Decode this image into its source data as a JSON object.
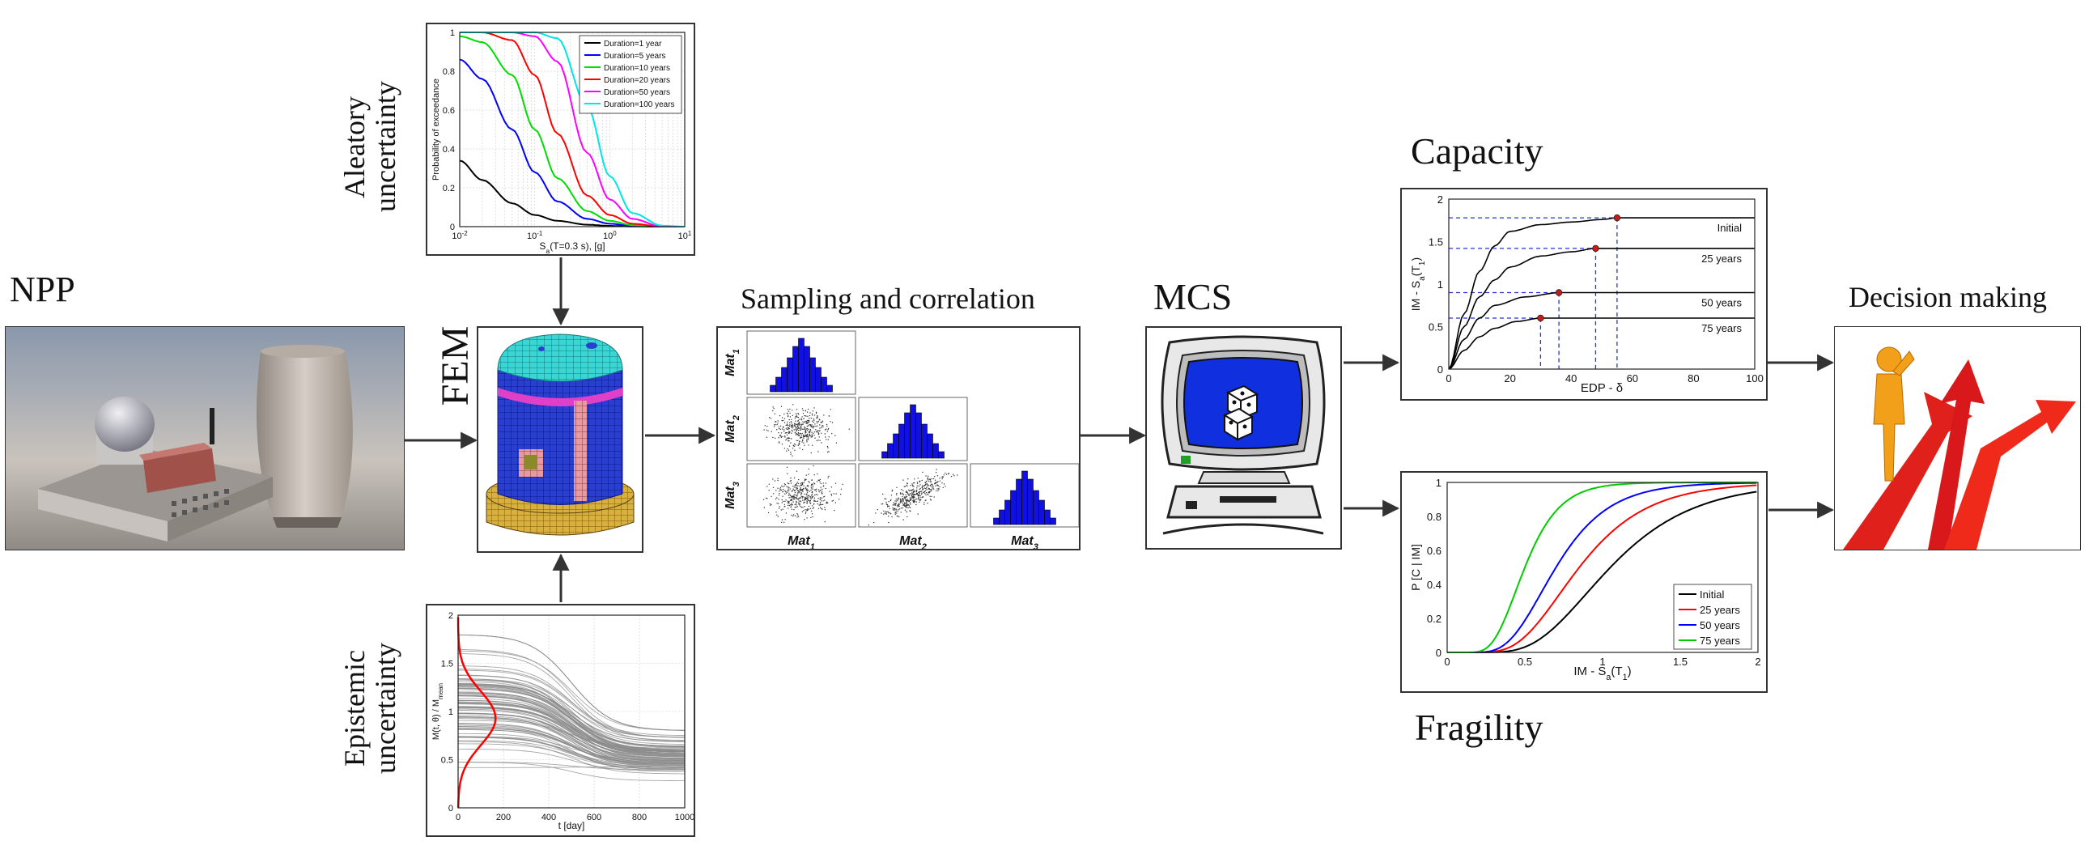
{
  "labels": {
    "npp": "NPP",
    "fem": "FEM",
    "aleatory_line1": "Aleatory",
    "aleatory_line2": "uncertainty",
    "epistemic_line1": "Epistemic",
    "epistemic_line2": "uncertainty",
    "sampling": "Sampling and correlation",
    "mcs": "MCS",
    "capacity": "Capacity",
    "fragility": "Fragility",
    "decision": "Decision making"
  },
  "sampling_matrix": {
    "mats": [
      "Mat",
      "Mat",
      "Mat"
    ],
    "subs": [
      "1",
      "2",
      "3"
    ]
  },
  "colors": {
    "histogram": "#1010e0",
    "scatter": "#333333",
    "cylinder_top": "#3ad6d6",
    "cylinder_body": "#2a3fd0",
    "cylinder_band": "#e040c8",
    "base": "#d8b040",
    "cooling_tower": "#c9bfb6",
    "figure_orange": "#f2a01a",
    "arrow_red": "#e0201a",
    "screen_blue": "#1030e0"
  },
  "chart_data": [
    {
      "type": "line",
      "title": "",
      "xlabel": "S_a(T=0.3 s), [g]",
      "ylabel": "Probability of exceedance",
      "xscale": "log",
      "xlim": [
        0.01,
        10
      ],
      "ylim": [
        0,
        1
      ],
      "xticks": [
        "10^-2",
        "10^-1",
        "10^0",
        "10^1"
      ],
      "yticks": [
        "0",
        "0.2",
        "0.4",
        "0.6",
        "0.8",
        "1"
      ],
      "legend_position": "top-right",
      "legend_labels": [
        "Duration=1 year",
        "Duration=5 years",
        "Duration=10 years",
        "Duration=20 years",
        "Duration=50 years",
        "Duration=100 years"
      ],
      "series": [
        {
          "name": "Duration=1 year",
          "color": "#000000",
          "x": [
            0.01,
            0.02,
            0.05,
            0.1,
            0.2,
            0.5,
            1,
            2,
            5,
            10
          ],
          "y": [
            0.34,
            0.24,
            0.12,
            0.06,
            0.03,
            0.01,
            0.004,
            0.001,
            0.0,
            0.0
          ]
        },
        {
          "name": "Duration=5 years",
          "color": "#0000ff",
          "x": [
            0.01,
            0.02,
            0.05,
            0.1,
            0.2,
            0.5,
            1,
            2,
            5,
            10
          ],
          "y": [
            0.86,
            0.76,
            0.5,
            0.28,
            0.13,
            0.04,
            0.015,
            0.004,
            0.0,
            0.0
          ]
        },
        {
          "name": "Duration=10 years",
          "color": "#00dd00",
          "x": [
            0.01,
            0.02,
            0.05,
            0.1,
            0.2,
            0.5,
            1,
            2,
            5,
            10
          ],
          "y": [
            0.98,
            0.95,
            0.78,
            0.5,
            0.25,
            0.08,
            0.03,
            0.008,
            0.0,
            0.0
          ]
        },
        {
          "name": "Duration=20 years",
          "color": "#ff0000",
          "x": [
            0.01,
            0.02,
            0.05,
            0.1,
            0.2,
            0.5,
            1,
            2,
            5,
            10
          ],
          "y": [
            1.0,
            1.0,
            0.96,
            0.78,
            0.48,
            0.16,
            0.06,
            0.015,
            0.0,
            0.0
          ]
        },
        {
          "name": "Duration=50 years",
          "color": "#ff00ff",
          "x": [
            0.01,
            0.02,
            0.05,
            0.1,
            0.2,
            0.5,
            1,
            2,
            5,
            10
          ],
          "y": [
            1.0,
            1.0,
            1.0,
            0.98,
            0.85,
            0.38,
            0.14,
            0.04,
            0.0,
            0.0
          ]
        },
        {
          "name": "Duration=100 years",
          "color": "#00e5e5",
          "x": [
            0.01,
            0.02,
            0.05,
            0.1,
            0.2,
            0.5,
            1,
            2,
            5,
            10
          ],
          "y": [
            1.0,
            1.0,
            1.0,
            1.0,
            0.97,
            0.62,
            0.26,
            0.07,
            0.005,
            0.0
          ]
        }
      ]
    },
    {
      "type": "line",
      "title": "",
      "xlabel": "t [day]",
      "ylabel": "M(t, θ) / M_mean",
      "xlim": [
        0,
        1000
      ],
      "ylim": [
        0,
        2
      ],
      "xticks": [
        "0",
        "200",
        "400",
        "600",
        "800",
        "1000"
      ],
      "yticks": [
        "0",
        "0.5",
        "1",
        "1.5",
        "2"
      ],
      "grid": true,
      "sample_paths": {
        "color": "#8a8a8a",
        "count": 90,
        "start_range": [
          0.35,
          1.8
        ],
        "end_range": [
          0.28,
          0.8
        ],
        "transition_day": 500
      },
      "density": {
        "color": "#ff0000",
        "mean": 0.93,
        "std": 0.28,
        "peak_day": 165
      }
    },
    {
      "type": "line",
      "title": "",
      "xlabel": "EDP - δ",
      "ylabel": "IM - S_a(T_1)",
      "xlim": [
        0,
        100
      ],
      "ylim": [
        0,
        2
      ],
      "xticks": [
        "0",
        "20",
        "40",
        "60",
        "80",
        "100"
      ],
      "yticks": [
        "0",
        "0.5",
        "1",
        "1.5",
        "2"
      ],
      "series": [
        {
          "name": "Initial",
          "color": "#000000",
          "x": [
            0,
            5,
            10,
            15,
            20,
            30,
            40,
            50,
            55,
            100
          ],
          "y": [
            0,
            0.65,
            1.15,
            1.45,
            1.62,
            1.7,
            1.73,
            1.76,
            1.78,
            1.78
          ]
        },
        {
          "name": "25 years",
          "color": "#000000",
          "x": [
            0,
            5,
            10,
            15,
            20,
            30,
            40,
            48,
            100
          ],
          "y": [
            0,
            0.5,
            0.85,
            1.05,
            1.2,
            1.33,
            1.38,
            1.42,
            1.42
          ]
        },
        {
          "name": "50 years",
          "color": "#000000",
          "x": [
            0,
            5,
            10,
            15,
            25,
            36,
            100
          ],
          "y": [
            0,
            0.35,
            0.6,
            0.75,
            0.85,
            0.9,
            0.9
          ]
        },
        {
          "name": "75 years",
          "color": "#000000",
          "x": [
            0,
            5,
            10,
            15,
            22,
            30,
            100
          ],
          "y": [
            0,
            0.22,
            0.38,
            0.48,
            0.56,
            0.6,
            0.6
          ]
        }
      ],
      "capacity_points": [
        {
          "x": 55,
          "y": 1.78
        },
        {
          "x": 48,
          "y": 1.42
        },
        {
          "x": 36,
          "y": 0.9
        },
        {
          "x": 30,
          "y": 0.6
        }
      ]
    },
    {
      "type": "line",
      "title": "",
      "xlabel": "IM - S_a(T_1)",
      "ylabel": "P [C | IM]",
      "xlim": [
        0,
        2
      ],
      "ylim": [
        0,
        1
      ],
      "xticks": [
        "0",
        "0.5",
        "1",
        "1.5",
        "2"
      ],
      "yticks": [
        "0",
        "0.2",
        "0.4",
        "0.6",
        "0.8",
        "1"
      ],
      "legend_position": "bottom-right",
      "legend_labels": [
        "Initial",
        "25 years",
        "50 years",
        "75 years"
      ],
      "series": [
        {
          "name": "Initial",
          "color": "#000000",
          "median": 1.05,
          "beta": 0.4
        },
        {
          "name": "25 years",
          "color": "#ff0000",
          "median": 0.85,
          "beta": 0.4
        },
        {
          "name": "50 years",
          "color": "#0000ff",
          "median": 0.7,
          "beta": 0.38
        },
        {
          "name": "75 years",
          "color": "#00cc00",
          "median": 0.5,
          "beta": 0.35
        }
      ]
    }
  ]
}
